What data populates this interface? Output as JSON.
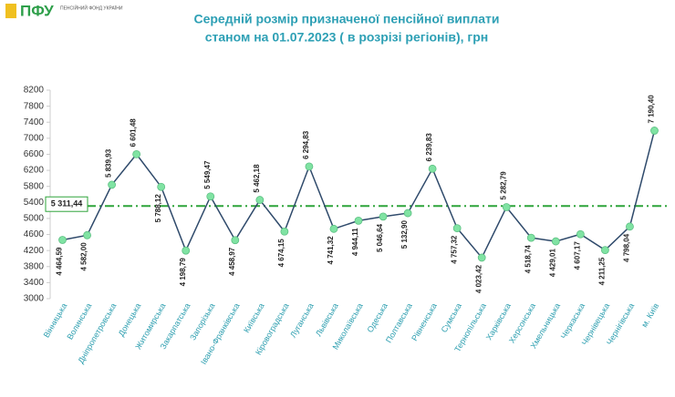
{
  "logo": {
    "mark": "ПФУ",
    "text": "ПЕНСІЙНИЙ ФОНД УКРАЇНИ"
  },
  "chart_data": {
    "type": "line",
    "title": [
      "Середній розмір призначеної пенсійної виплати",
      "станом на 01.07.2023 ( в розрізі регіонів), грн"
    ],
    "categories": [
      "Вінницька",
      "Волинська",
      "Дніпропетровська",
      "Донецька",
      "Житомирська",
      "Закарпатська",
      "Запорізька",
      "Івано-Франківська",
      "Київська",
      "Кіровоградська",
      "Луганська",
      "Львівська",
      "Миколаївська",
      "Одеська",
      "Полтавська",
      "Рівненська",
      "Сумська",
      "Тернопільська",
      "Харківська",
      "Херсонська",
      "Хмельницька",
      "Черкаська",
      "Чернівецька",
      "Чернігівська",
      "м. Київ"
    ],
    "values": [
      4464.59,
      4582.0,
      5839.93,
      6601.48,
      5788.12,
      4198.79,
      5549.47,
      4458.97,
      5462.18,
      4674.15,
      6294.83,
      4741.32,
      4944.11,
      5046.64,
      5132.9,
      6239.83,
      4757.32,
      4023.42,
      5282.79,
      4518.74,
      4429.01,
      4607.17,
      4211.25,
      4798.04,
      7190.4
    ],
    "value_labels": [
      "4 464,59",
      "4 582,00",
      "5 839,93",
      "6 601,48",
      "5 788,12",
      "4 198,79",
      "5 549,47",
      "4 458,97",
      "5 462,18",
      "4 674,15",
      "6 294,83",
      "4 741,32",
      "4 944,11",
      "5 046,64",
      "5 132,90",
      "6 239,83",
      "4 757,32",
      "4 023,42",
      "5 282,79",
      "4 518,74",
      "4 429,01",
      "4 607,17",
      "4 211,25",
      "4 798,04",
      "7 190,40"
    ],
    "color": "#2f4a6b",
    "marker_color": "#80e3a3",
    "average": {
      "value": 5311.44,
      "label": "5 311,44",
      "color": "#2ea43a"
    },
    "ylim": [
      3000,
      8200
    ],
    "yticks": [
      3000,
      3400,
      3800,
      4200,
      4600,
      5000,
      5400,
      5800,
      6200,
      6600,
      7000,
      7400,
      7800,
      8200
    ]
  }
}
